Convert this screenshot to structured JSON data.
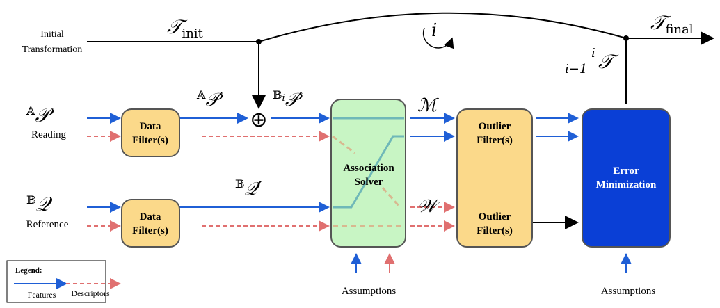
{
  "inputs": {
    "initial_transformation": [
      "Initial",
      "Transformation"
    ],
    "t_init": {
      "symbol": "𝒯",
      "sub": "init"
    },
    "t_final": {
      "symbol": "𝒯",
      "sub": "final"
    },
    "iteration": "i",
    "t_iter": {
      "pre": "i−1",
      "sup": "i",
      "symbol": "𝒯"
    }
  },
  "reading": {
    "symbol": "𝒫",
    "pre": "𝔸",
    "label": "Reading",
    "filtered": {
      "pre": "𝔸",
      "symbol": "𝒫′"
    },
    "transformed": {
      "pre": "𝔹",
      "sub": "i",
      "symbol": "𝒫′"
    }
  },
  "reference": {
    "symbol": "𝒬",
    "pre": "𝔹",
    "label": "Reference",
    "filtered": {
      "pre": "𝔹",
      "symbol": "𝒬′"
    }
  },
  "blocks": {
    "data_filter": [
      "Data",
      "Filter(s)"
    ],
    "association": [
      "Association",
      "Solver"
    ],
    "outlier": [
      "Outlier",
      "Filter(s)"
    ],
    "error": [
      "Error",
      "Minimization"
    ],
    "assumptions": "Assumptions"
  },
  "signals": {
    "matches": "ℳ",
    "weights": "𝒲",
    "combine": "⊕"
  },
  "legend": {
    "title": "Legend:",
    "features": "Features",
    "descriptors": "Descriptors"
  }
}
